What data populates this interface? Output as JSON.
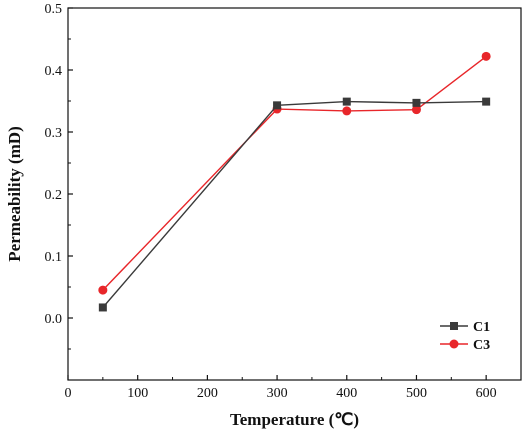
{
  "chart_data": {
    "type": "line",
    "title": "",
    "xlabel": "Temperature (℃)",
    "ylabel": "Permeability (mD)",
    "xlim": [
      0,
      650
    ],
    "ylim": [
      -0.1,
      0.5
    ],
    "xticks": [
      0,
      100,
      200,
      300,
      400,
      500,
      600
    ],
    "yticks": [
      0.0,
      0.1,
      0.2,
      0.3,
      0.4,
      0.5
    ],
    "xtick_labels": [
      "0",
      "100",
      "200",
      "300",
      "400",
      "500",
      "600"
    ],
    "ytick_labels": [
      "0.0",
      "0.1",
      "0.2",
      "0.3",
      "0.4",
      "0.5"
    ],
    "grid": false,
    "legend_position": "bottom-right",
    "series": [
      {
        "name": "C1",
        "marker": "square",
        "color": "#3a3a3a",
        "x": [
          50,
          300,
          400,
          500,
          600
        ],
        "y": [
          0.017,
          0.343,
          0.349,
          0.347,
          0.349
        ]
      },
      {
        "name": "C3",
        "marker": "circle",
        "color": "#e8262a",
        "x": [
          50,
          300,
          400,
          500,
          600
        ],
        "y": [
          0.045,
          0.337,
          0.334,
          0.336,
          0.422
        ]
      }
    ]
  }
}
